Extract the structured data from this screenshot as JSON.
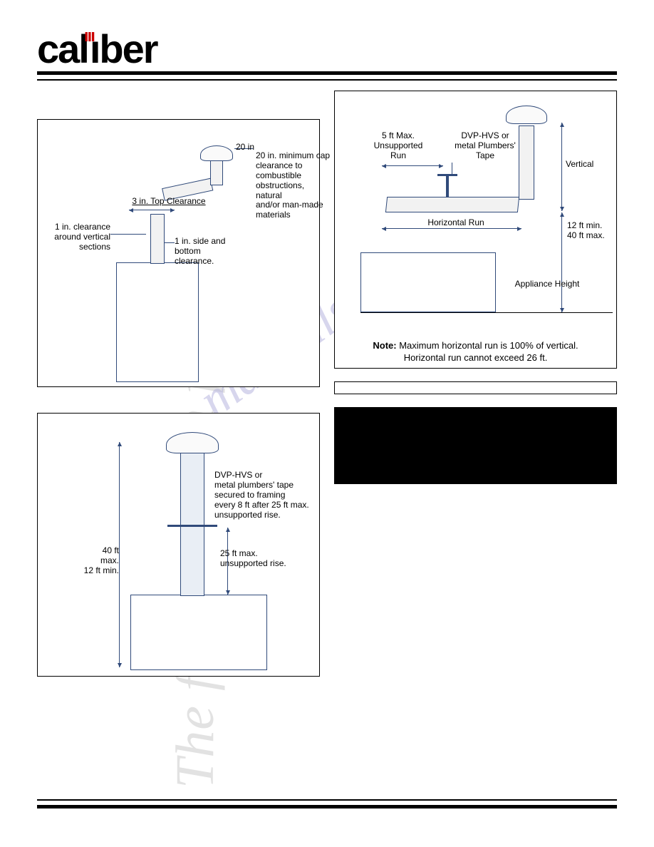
{
  "brand": {
    "logo_text": "caliber",
    "tagline": "The first name in fireplaces"
  },
  "watermark": "manualshive.com",
  "colors": {
    "diagram_stroke": "#304a7a",
    "watermark_color": "#b8b5e0",
    "sidetext_color": "#e2e2e2",
    "text": "#000000",
    "background": "#ffffff"
  },
  "figure7": {
    "type": "diagram",
    "labels": {
      "clearance_around_vertical": "1 in. clearance\naround vertical\nsections",
      "top_clearance": "3 in. Top Clearance",
      "side_bottom": "1 in. side and\nbottom\nclearance.",
      "cap_gap": "20 in",
      "cap_note": "20 in. minimum cap\nclearance to combustible\nobstructions, natural\nand/or man-made\nmaterials"
    }
  },
  "figure8": {
    "type": "diagram",
    "labels": {
      "tape": "DVP-HVS or\nmetal plumbers' tape\nsecured to framing\nevery 8 ft after 25 ft max.\nunsupported rise.",
      "total_height": "40 ft max.\n12 ft min.",
      "unsupported": "25 ft max.\nunsupported rise."
    }
  },
  "figure9": {
    "type": "diagram",
    "labels": {
      "unsupported_run": "5 ft Max.\nUnsupported\nRun",
      "tape": "DVP-HVS or\nmetal Plumbers'\nTape",
      "vertical": "Vertical",
      "horizontal_run": "Horizontal Run",
      "height_range": "12 ft min.\n40 ft max.",
      "appliance_height": "Appliance Height"
    },
    "note": "Note: Maximum horizontal run is 100% of vertical.\nHorizontal run cannot exceed 26 ft."
  },
  "note_box": {
    "text": ""
  },
  "warning_box": {
    "text": ""
  }
}
